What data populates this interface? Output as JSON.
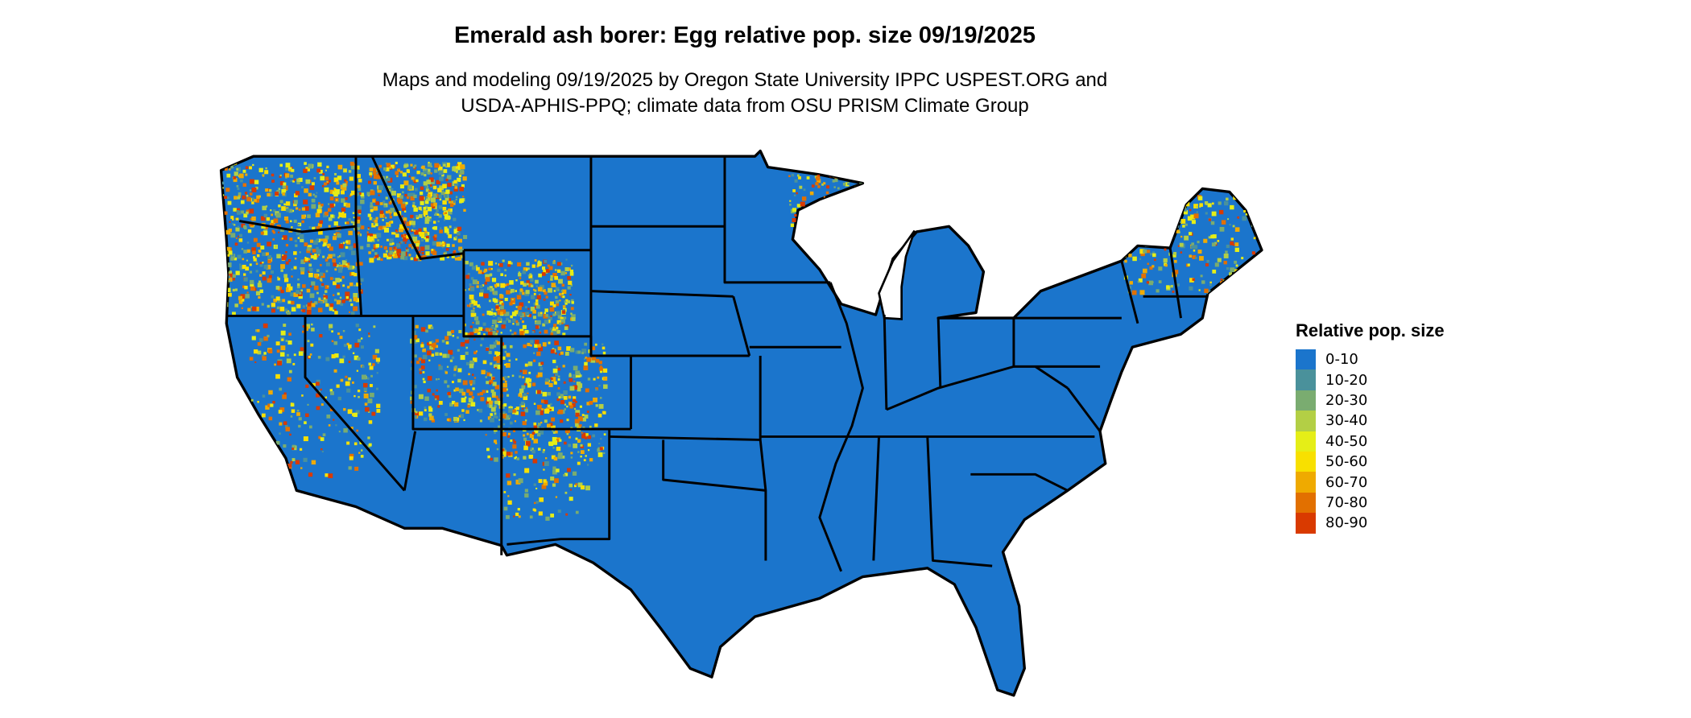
{
  "title": "Emerald ash borer: Egg relative pop. size 09/19/2025",
  "subtitle_line1": "Maps and modeling 09/19/2025 by Oregon State University IPPC USPEST.ORG and",
  "subtitle_line2": "USDA-APHIS-PPQ; climate data from OSU PRISM Climate Group",
  "map": {
    "region": "Contiguous United States",
    "base_color": "#1b75cc",
    "border_color": "#000000"
  },
  "legend": {
    "title": "Relative pop. size",
    "items": [
      {
        "label": "0-10",
        "color": "#1b75cc"
      },
      {
        "label": "10-20",
        "color": "#4a919b"
      },
      {
        "label": "20-30",
        "color": "#7aac70"
      },
      {
        "label": "30-40",
        "color": "#b3cf45"
      },
      {
        "label": "40-50",
        "color": "#e5ee17"
      },
      {
        "label": "50-60",
        "color": "#f8e000"
      },
      {
        "label": "60-70",
        "color": "#efaa00"
      },
      {
        "label": "70-80",
        "color": "#e27000"
      },
      {
        "label": "80-90",
        "color": "#d93a00"
      }
    ]
  }
}
